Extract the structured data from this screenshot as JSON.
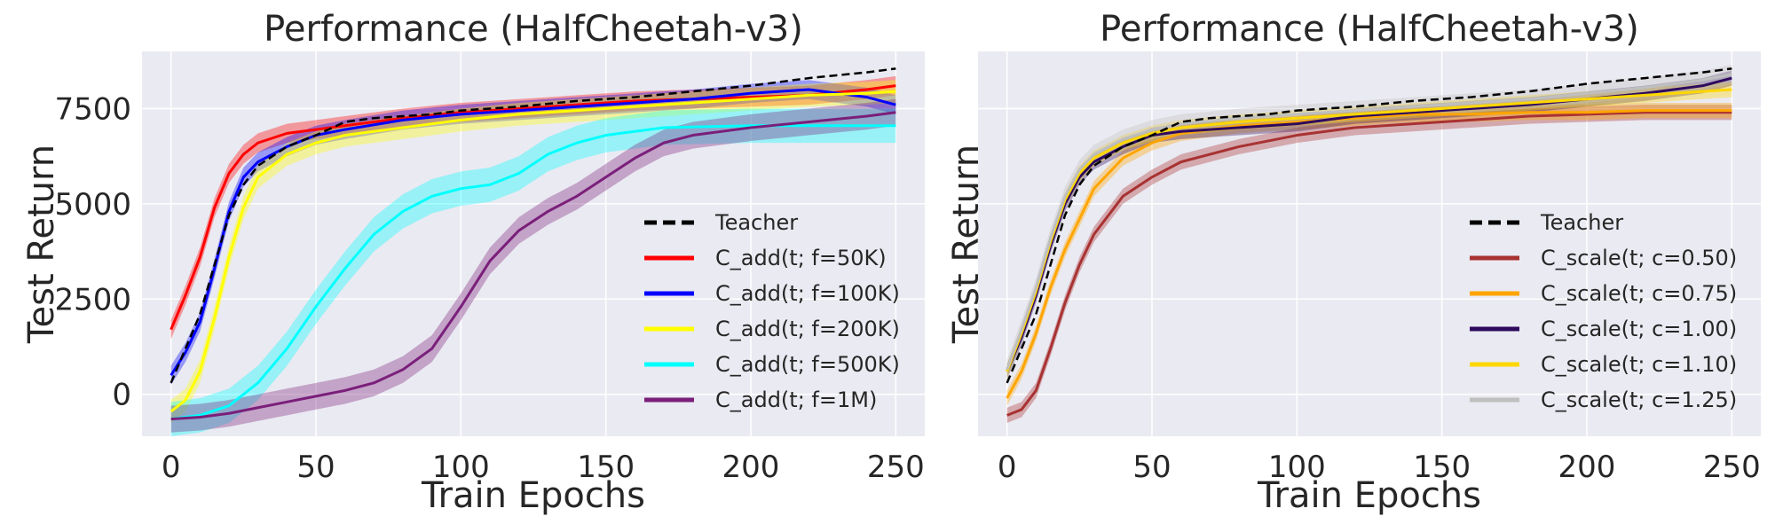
{
  "chart_data": [
    {
      "type": "line",
      "title": "Performance (HalfCheetah-v3)",
      "xlabel": "Train Epochs",
      "ylabel": "Test Return",
      "xlim": [
        -10,
        260
      ],
      "ylim": [
        -1100,
        9000
      ],
      "xticks": [
        0,
        50,
        100,
        150,
        200,
        250
      ],
      "yticks": [
        0,
        2500,
        5000,
        7500
      ],
      "grid": true,
      "legend": "lower-right",
      "series": [
        {
          "name": "Teacher",
          "color": "#000000",
          "dash": true,
          "band": 0,
          "x": [
            0,
            5,
            10,
            15,
            20,
            25,
            30,
            40,
            50,
            60,
            70,
            80,
            90,
            100,
            120,
            140,
            160,
            180,
            200,
            220,
            240,
            250
          ],
          "y": [
            300,
            1200,
            2100,
            3400,
            4700,
            5500,
            6000,
            6500,
            6800,
            7150,
            7250,
            7300,
            7350,
            7450,
            7550,
            7700,
            7800,
            7950,
            8100,
            8300,
            8450,
            8550
          ]
        },
        {
          "name": "C_add(t; f=50K)",
          "color": "#ff0000",
          "band": 250,
          "x": [
            0,
            5,
            10,
            15,
            20,
            25,
            30,
            40,
            50,
            60,
            80,
            100,
            120,
            140,
            160,
            180,
            200,
            220,
            240,
            250
          ],
          "y": [
            1700,
            2600,
            3600,
            4900,
            5800,
            6300,
            6600,
            6850,
            6950,
            7050,
            7250,
            7400,
            7500,
            7600,
            7700,
            7750,
            7800,
            7850,
            8000,
            8100
          ]
        },
        {
          "name": "C_add(t; f=100K)",
          "color": "#0000ff",
          "band": 250,
          "x": [
            0,
            5,
            10,
            15,
            20,
            25,
            30,
            40,
            50,
            60,
            80,
            100,
            120,
            140,
            160,
            180,
            200,
            220,
            240,
            250
          ],
          "y": [
            500,
            1100,
            1900,
            3300,
            4800,
            5700,
            6100,
            6500,
            6800,
            6950,
            7200,
            7350,
            7450,
            7550,
            7650,
            7750,
            7900,
            8000,
            7800,
            7600
          ]
        },
        {
          "name": "C_add(t; f=200K)",
          "color": "#ffff00",
          "band": 300,
          "x": [
            0,
            5,
            10,
            15,
            20,
            25,
            30,
            40,
            50,
            60,
            80,
            100,
            120,
            140,
            160,
            180,
            200,
            220,
            240,
            250
          ],
          "y": [
            -450,
            -150,
            600,
            2000,
            3600,
            4900,
            5700,
            6300,
            6600,
            6800,
            7000,
            7200,
            7350,
            7450,
            7550,
            7650,
            7750,
            7850,
            7900,
            7950
          ]
        },
        {
          "name": "C_add(t; f=500K)",
          "color": "#00ffff",
          "band": 450,
          "x": [
            0,
            10,
            20,
            30,
            40,
            50,
            60,
            70,
            80,
            90,
            100,
            110,
            120,
            130,
            140,
            150,
            170,
            200,
            230,
            250
          ],
          "y": [
            -650,
            -550,
            -300,
            300,
            1200,
            2300,
            3300,
            4200,
            4800,
            5200,
            5400,
            5500,
            5800,
            6300,
            6600,
            6800,
            7000,
            7050,
            7050,
            7050
          ]
        },
        {
          "name": "C_add(t; f=1M)",
          "color": "#7a1f7a",
          "band": 350,
          "x": [
            0,
            10,
            20,
            30,
            40,
            50,
            60,
            70,
            80,
            90,
            100,
            110,
            120,
            130,
            140,
            150,
            160,
            170,
            180,
            200,
            220,
            240,
            250
          ],
          "y": [
            -650,
            -600,
            -500,
            -350,
            -200,
            -50,
            100,
            300,
            650,
            1200,
            2300,
            3500,
            4300,
            4800,
            5200,
            5700,
            6200,
            6600,
            6800,
            7000,
            7150,
            7300,
            7400
          ]
        }
      ]
    },
    {
      "type": "line",
      "title": "Performance (HalfCheetah-v3)",
      "xlabel": "Train Epochs",
      "ylabel": "Test Return",
      "xlim": [
        -10,
        260
      ],
      "ylim": [
        -1100,
        9000
      ],
      "xticks": [
        0,
        50,
        100,
        150,
        200,
        250
      ],
      "yticks": [],
      "grid": true,
      "legend": "lower-right",
      "series": [
        {
          "name": "Teacher",
          "color": "#000000",
          "dash": true,
          "band": 0,
          "x": [
            0,
            5,
            10,
            15,
            20,
            25,
            30,
            40,
            50,
            60,
            70,
            80,
            90,
            100,
            120,
            140,
            160,
            180,
            200,
            220,
            240,
            250
          ],
          "y": [
            300,
            1200,
            2100,
            3400,
            4700,
            5500,
            6000,
            6500,
            6800,
            7150,
            7250,
            7300,
            7350,
            7450,
            7550,
            7700,
            7800,
            7950,
            8150,
            8300,
            8450,
            8550
          ]
        },
        {
          "name": "C_scale(t; c=0.50)",
          "color": "#a83232",
          "band": 200,
          "x": [
            0,
            5,
            10,
            15,
            20,
            25,
            30,
            40,
            50,
            60,
            80,
            100,
            120,
            140,
            160,
            180,
            200,
            220,
            240,
            250
          ],
          "y": [
            -550,
            -400,
            100,
            1200,
            2400,
            3400,
            4200,
            5200,
            5700,
            6100,
            6500,
            6800,
            7000,
            7100,
            7200,
            7300,
            7350,
            7400,
            7400,
            7400
          ]
        },
        {
          "name": "C_scale(t; c=0.75)",
          "color": "#ffa500",
          "band": 200,
          "x": [
            0,
            5,
            10,
            15,
            20,
            25,
            30,
            40,
            50,
            60,
            80,
            100,
            120,
            140,
            160,
            180,
            200,
            220,
            240,
            250
          ],
          "y": [
            -100,
            600,
            1600,
            2800,
            3800,
            4600,
            5400,
            6200,
            6600,
            6850,
            7050,
            7150,
            7250,
            7350,
            7350,
            7400,
            7400,
            7450,
            7450,
            7450
          ]
        },
        {
          "name": "C_scale(t; c=1.00)",
          "color": "#2e0a5e",
          "band": 200,
          "x": [
            0,
            5,
            10,
            15,
            20,
            25,
            30,
            40,
            50,
            60,
            80,
            100,
            120,
            140,
            160,
            180,
            200,
            220,
            240,
            250
          ],
          "y": [
            600,
            1500,
            2600,
            3900,
            5000,
            5700,
            6100,
            6500,
            6800,
            6900,
            7000,
            7100,
            7300,
            7400,
            7500,
            7600,
            7750,
            7900,
            8100,
            8300
          ]
        },
        {
          "name": "C_scale(t; c=1.10)",
          "color": "#ffd700",
          "band": 200,
          "x": [
            0,
            5,
            10,
            15,
            20,
            25,
            30,
            40,
            50,
            60,
            80,
            100,
            120,
            140,
            160,
            180,
            200,
            220,
            240,
            250
          ],
          "y": [
            600,
            1600,
            2700,
            4000,
            5100,
            5800,
            6200,
            6600,
            6850,
            7000,
            7150,
            7250,
            7350,
            7450,
            7550,
            7650,
            7750,
            7850,
            7950,
            8000
          ]
        },
        {
          "name": "C_scale(t; c=1.25)",
          "color": "#bfbfbf",
          "band": 250,
          "x": [
            0,
            5,
            10,
            15,
            20,
            25,
            30,
            40,
            50,
            60,
            80,
            100,
            120,
            140,
            160,
            180,
            200,
            220,
            240,
            250
          ],
          "y": [
            650,
            1700,
            2800,
            4100,
            5200,
            5900,
            6300,
            6700,
            6950,
            7100,
            7250,
            7350,
            7450,
            7550,
            7650,
            7750,
            7900,
            8050,
            8250,
            8400
          ]
        }
      ]
    }
  ]
}
